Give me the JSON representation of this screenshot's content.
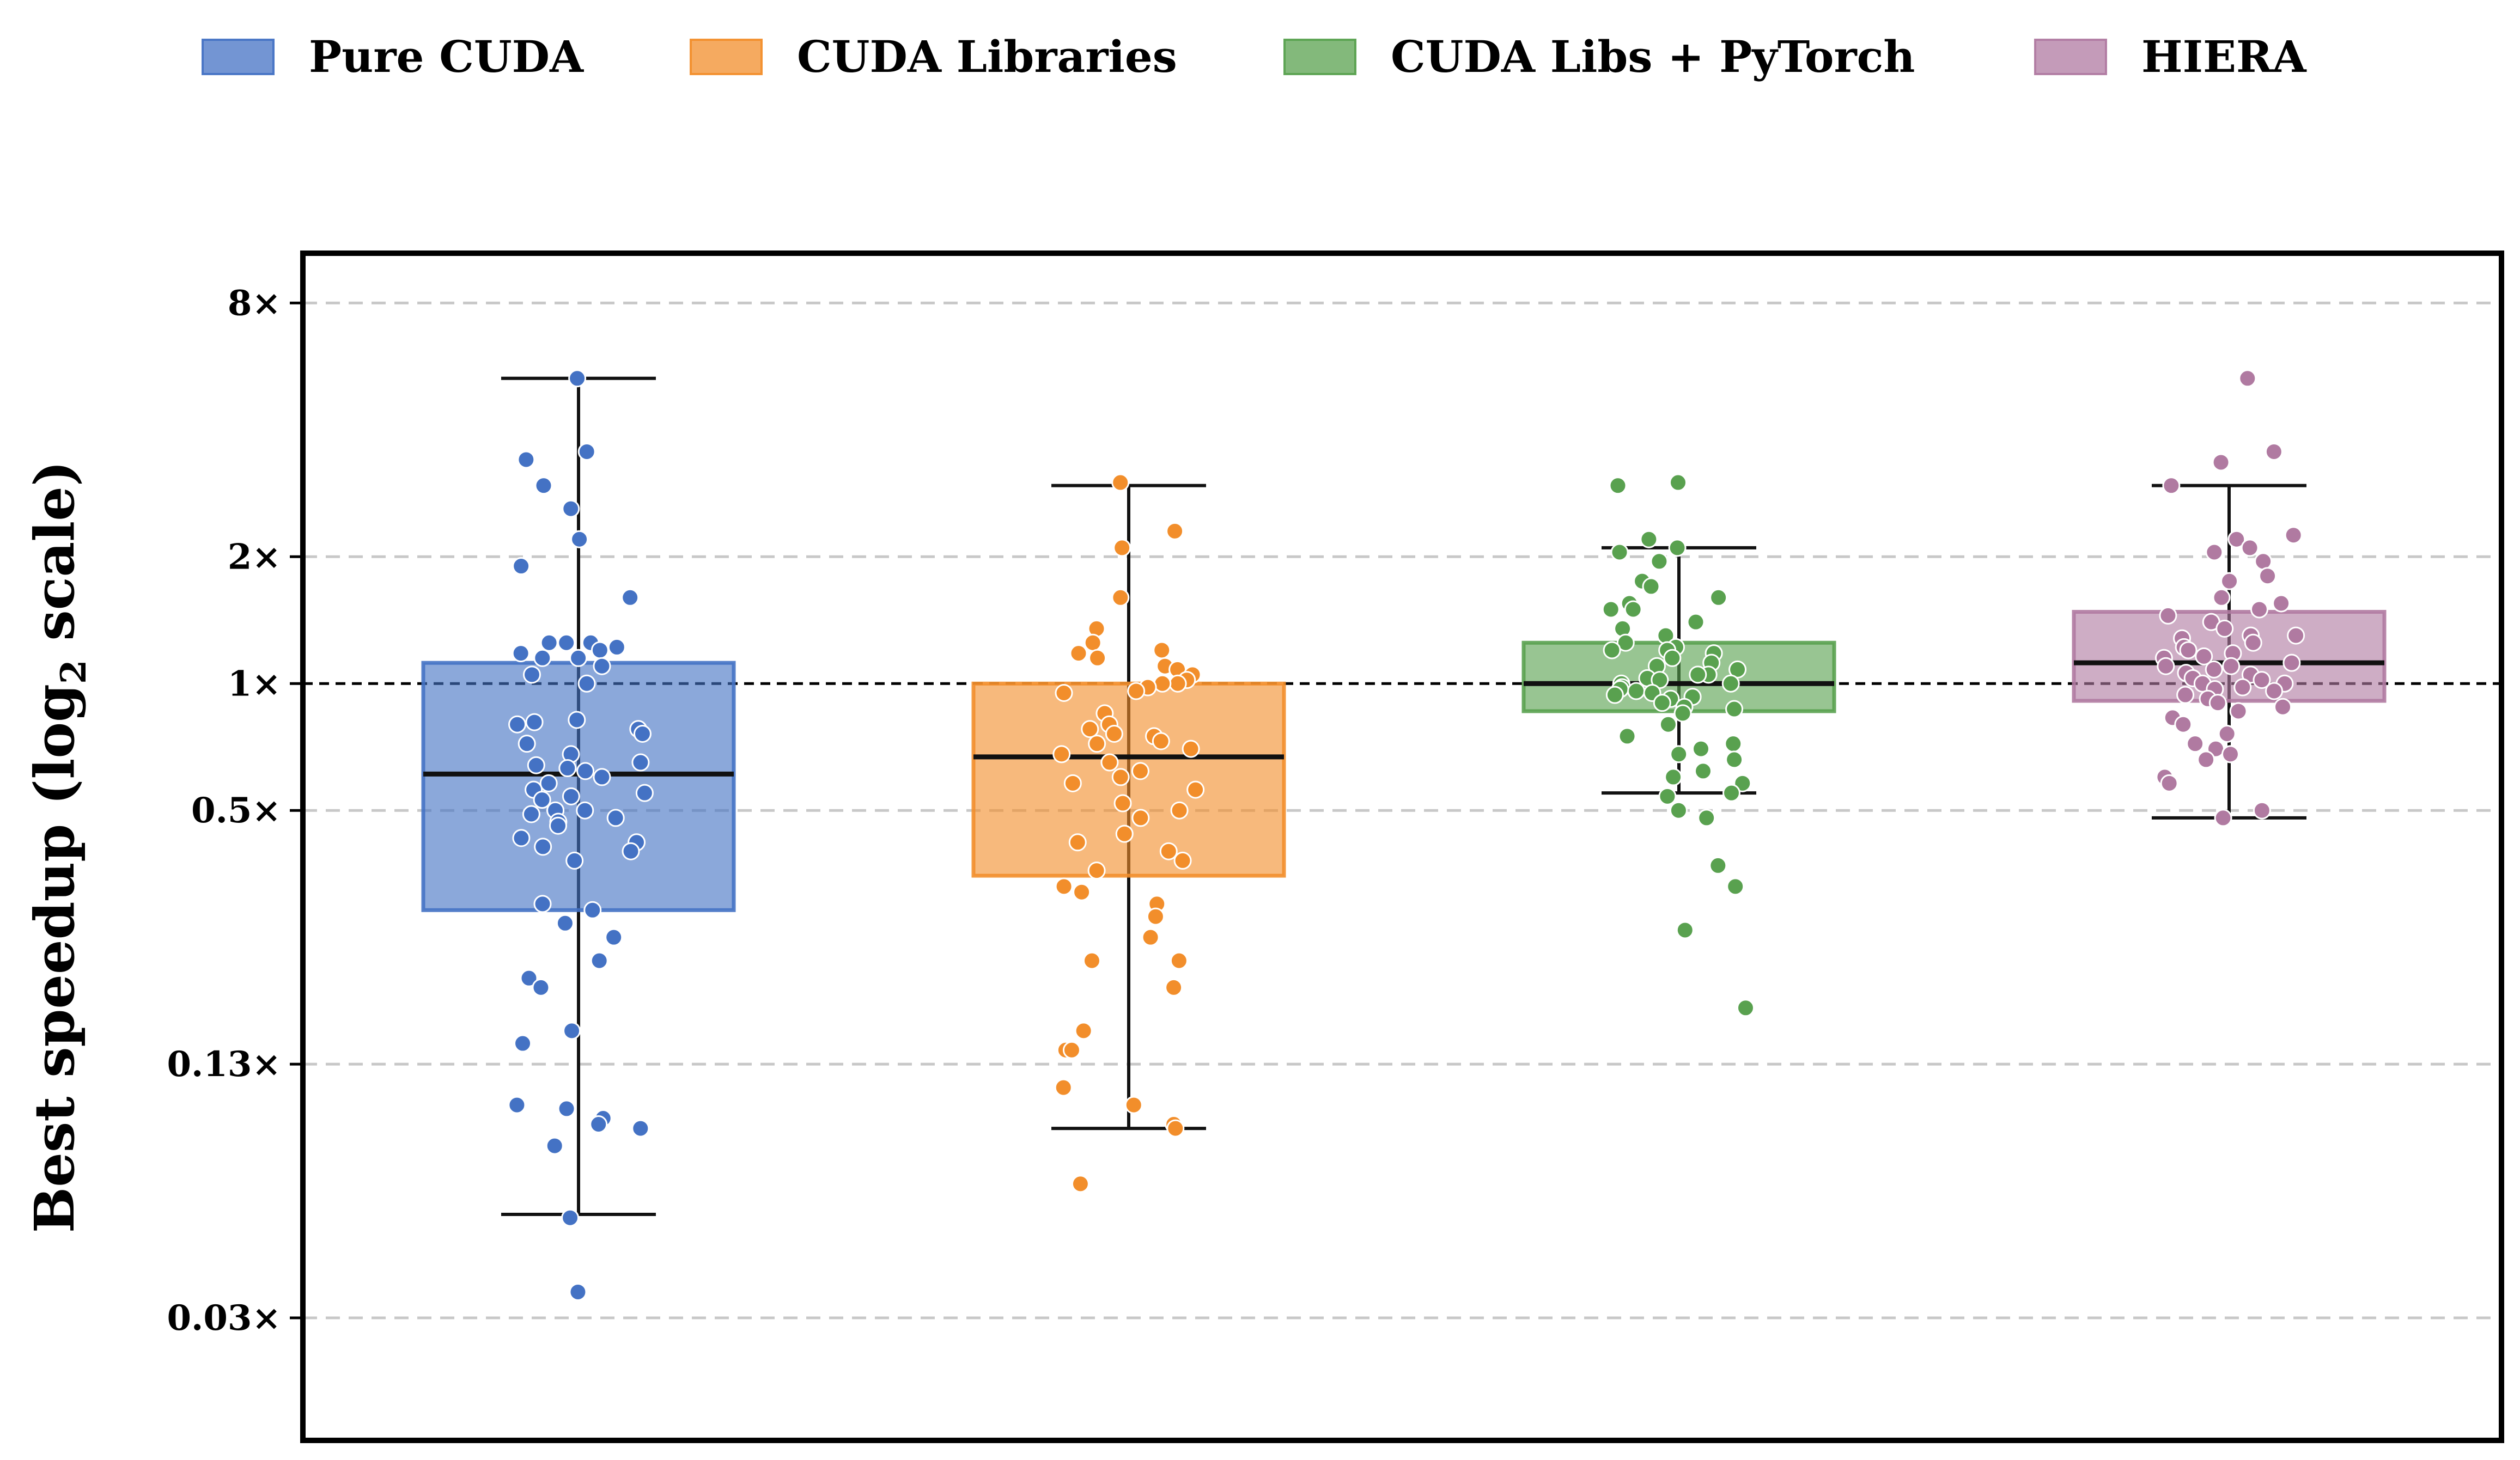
{
  "chart_data": {
    "type": "box",
    "y_scale": "log2",
    "ylabel": "Best speedup (log",
    "ylabel_subscript": "2",
    "ylabel_suffix": " scale)",
    "yticks": [
      {
        "value": 8,
        "label": "8×"
      },
      {
        "value": 2,
        "label": "2×"
      },
      {
        "value": 1,
        "label": "1×"
      },
      {
        "value": 0.5,
        "label": "0.5×"
      },
      {
        "value": 0.125,
        "label": "0.13×"
      },
      {
        "value": 0.03125,
        "label": "0.03×"
      }
    ],
    "ylim": [
      0.016,
      10.5
    ],
    "grid": "horizontal dashed",
    "reference_line": 1,
    "legend_position": "top",
    "series": [
      {
        "name": "Pure CUDA",
        "color": "#4472C4",
        "box": {
          "whisker_low": 0.055,
          "q1": 0.29,
          "median": 0.61,
          "q3": 1.12,
          "whisker_high": 5.3
        },
        "points": [
          5.3,
          3.55,
          3.4,
          2.95,
          2.6,
          2.2,
          1.9,
          1.6,
          1.25,
          1.25,
          1.25,
          1.22,
          1.2,
          1.18,
          1.15,
          1.15,
          1.1,
          1.05,
          1.0,
          0.82,
          0.81,
          0.8,
          0.78,
          0.76,
          0.72,
          0.68,
          0.65,
          0.64,
          0.63,
          0.62,
          0.6,
          0.58,
          0.56,
          0.55,
          0.54,
          0.53,
          0.5,
          0.5,
          0.49,
          0.48,
          0.47,
          0.46,
          0.43,
          0.42,
          0.41,
          0.4,
          0.38,
          0.3,
          0.29,
          0.27,
          0.25,
          0.22,
          0.2,
          0.19,
          0.15,
          0.14,
          0.1,
          0.098,
          0.093,
          0.09,
          0.088,
          0.08,
          0.054,
          0.036
        ]
      },
      {
        "name": "CUDA Libraries",
        "color": "#F28E2B",
        "box": {
          "whisker_low": 0.088,
          "q1": 0.35,
          "median": 0.67,
          "q3": 1.0,
          "whisker_high": 2.95
        },
        "points": [
          3.0,
          2.3,
          2.1,
          1.6,
          1.35,
          1.25,
          1.2,
          1.18,
          1.15,
          1.1,
          1.08,
          1.05,
          1.02,
          1.0,
          1.0,
          0.98,
          0.96,
          0.95,
          0.85,
          0.8,
          0.78,
          0.76,
          0.75,
          0.73,
          0.72,
          0.7,
          0.68,
          0.65,
          0.62,
          0.6,
          0.58,
          0.56,
          0.52,
          0.5,
          0.48,
          0.44,
          0.42,
          0.4,
          0.38,
          0.36,
          0.33,
          0.32,
          0.3,
          0.28,
          0.25,
          0.22,
          0.22,
          0.19,
          0.15,
          0.135,
          0.135,
          0.11,
          0.1,
          0.09,
          0.088,
          0.065
        ]
      },
      {
        "name": "CUDA Libs + PyTorch",
        "color": "#59A14F",
        "box": {
          "whisker_low": 0.55,
          "q1": 0.86,
          "median": 1.0,
          "q3": 1.25,
          "whisker_high": 2.1
        },
        "points": [
          3.0,
          2.95,
          2.2,
          2.1,
          2.05,
          1.95,
          1.75,
          1.7,
          1.6,
          1.55,
          1.5,
          1.5,
          1.4,
          1.35,
          1.3,
          1.25,
          1.22,
          1.2,
          1.2,
          1.18,
          1.15,
          1.12,
          1.1,
          1.08,
          1.05,
          1.05,
          1.03,
          1.02,
          1.0,
          1.0,
          0.98,
          0.97,
          0.96,
          0.95,
          0.94,
          0.93,
          0.92,
          0.9,
          0.88,
          0.87,
          0.85,
          0.8,
          0.75,
          0.72,
          0.7,
          0.68,
          0.66,
          0.62,
          0.6,
          0.58,
          0.55,
          0.54,
          0.5,
          0.48,
          0.37,
          0.33,
          0.26,
          0.17
        ]
      },
      {
        "name": "HIERA",
        "color": "#B07AA1",
        "box": {
          "whisker_low": 0.48,
          "q1": 0.91,
          "median": 1.12,
          "q3": 1.48,
          "whisker_high": 2.95
        },
        "points": [
          5.3,
          3.55,
          3.35,
          2.95,
          2.25,
          2.2,
          2.1,
          2.05,
          1.95,
          1.8,
          1.75,
          1.6,
          1.55,
          1.5,
          1.45,
          1.4,
          1.35,
          1.3,
          1.3,
          1.28,
          1.25,
          1.22,
          1.2,
          1.18,
          1.16,
          1.15,
          1.12,
          1.1,
          1.1,
          1.08,
          1.06,
          1.05,
          1.03,
          1.02,
          1.0,
          1.0,
          0.98,
          0.97,
          0.96,
          0.94,
          0.92,
          0.9,
          0.88,
          0.86,
          0.83,
          0.8,
          0.76,
          0.72,
          0.7,
          0.68,
          0.66,
          0.6,
          0.58,
          0.5,
          0.48
        ]
      }
    ]
  }
}
